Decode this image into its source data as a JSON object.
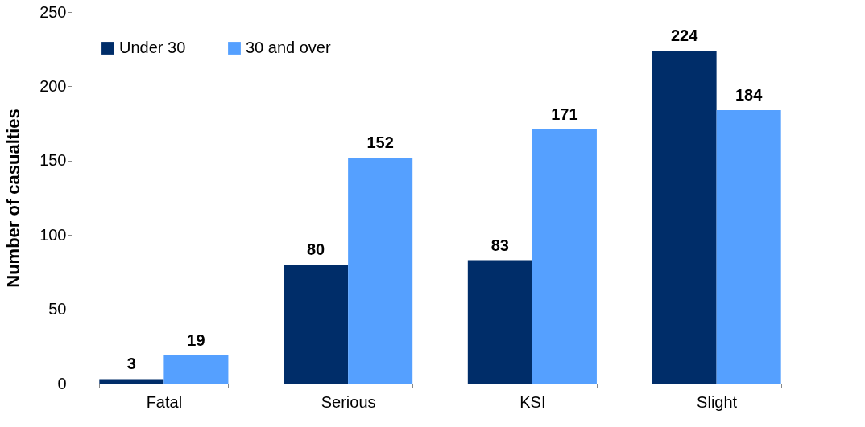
{
  "chart_data": {
    "type": "bar",
    "ylabel": "Number of casualties",
    "categories": [
      "Fatal",
      "Serious",
      "KSI",
      "Slight"
    ],
    "series": [
      {
        "name": "Under 30",
        "color": "#002d69",
        "values": [
          3,
          80,
          83,
          224
        ]
      },
      {
        "name": "30 and over",
        "color": "#55a0ff",
        "values": [
          19,
          152,
          171,
          184
        ]
      }
    ],
    "ylim": [
      0,
      250
    ],
    "yticks": [
      0,
      50,
      100,
      150,
      200,
      250
    ],
    "grid": false,
    "legend": "top left",
    "data_labels": true
  }
}
